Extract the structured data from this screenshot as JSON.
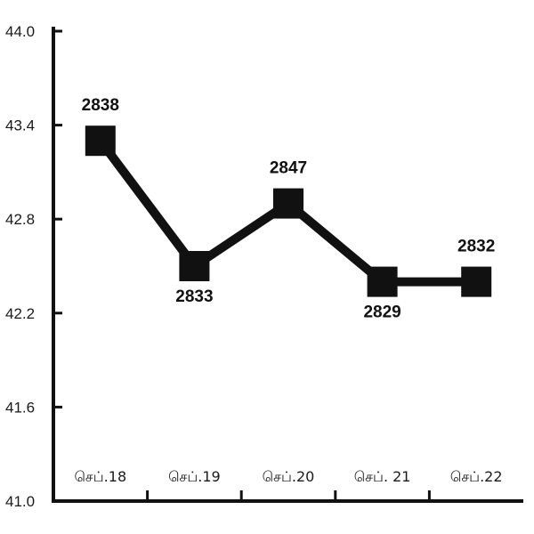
{
  "chart_data": {
    "type": "line",
    "title": "",
    "xlabel": "",
    "ylabel": "",
    "categories": [
      "செப்.18",
      "செப்.19",
      "செப்.20",
      "செப். 21",
      "செப்.22"
    ],
    "series": [
      {
        "values": [
          43.3,
          42.5,
          42.9,
          42.4,
          42.4
        ],
        "data_labels": [
          "2838",
          "2833",
          "2847",
          "2829",
          "2832"
        ],
        "label_positions": [
          "above",
          "below",
          "above",
          "below",
          "above"
        ]
      }
    ],
    "ylim": [
      41.0,
      44.0
    ],
    "yticks": [
      "41.0",
      "41.6",
      "42.2",
      "42.8",
      "43.4",
      "44.0"
    ],
    "grid": false,
    "legend": "none",
    "line_color": "#111111",
    "marker": "square"
  }
}
